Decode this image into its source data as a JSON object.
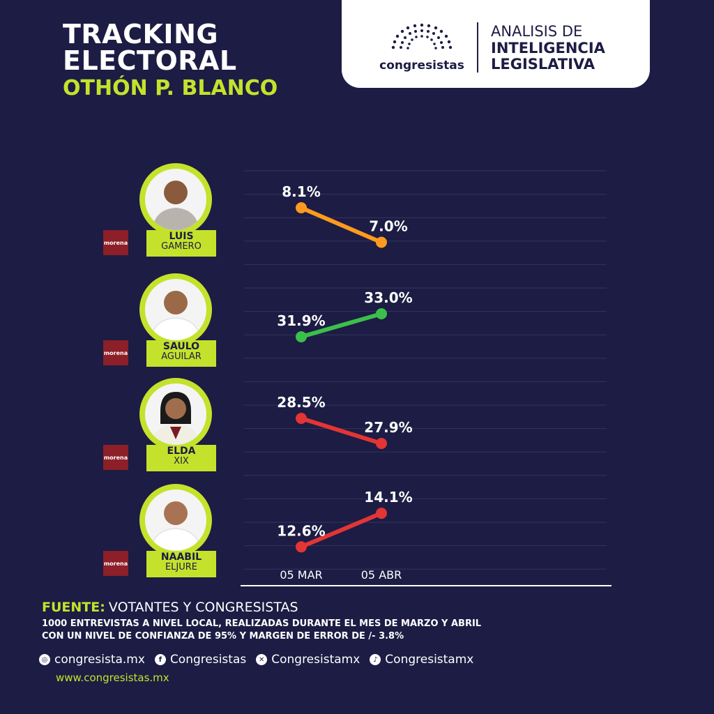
{
  "header": {
    "title_line1": "TRACKING",
    "title_line2": "ELECTORAL",
    "subtitle": "OTHÓN P. BLANCO"
  },
  "brand": {
    "name": "congresistas",
    "line1": "ANALISIS DE",
    "line2": "INTELIGENCIA",
    "line3": "LEGISLATIVA"
  },
  "candidates": [
    {
      "first": "LUIS",
      "last": "GAMERO",
      "party": "morena"
    },
    {
      "first": "SAULO",
      "last": "AGUILAR",
      "party": "morena"
    },
    {
      "first": "ELDA",
      "last": "XIX",
      "party": "morena"
    },
    {
      "first": "NAABIL",
      "last": "ELJURE",
      "party": "morena"
    }
  ],
  "chart_data": {
    "type": "line",
    "x": [
      "05 MAR",
      "05 ABR"
    ],
    "series": [
      {
        "name": "LUIS GAMERO",
        "values": [
          8.1,
          7.0
        ],
        "labels": [
          "8.1%",
          "7.0%"
        ],
        "color": "#ff9a1f"
      },
      {
        "name": "SAULO AGUILAR",
        "values": [
          31.9,
          33.0
        ],
        "labels": [
          "31.9%",
          "33.0%"
        ],
        "color": "#3cbf4a"
      },
      {
        "name": "ELDA XIX",
        "values": [
          28.5,
          27.9
        ],
        "labels": [
          "28.5%",
          "27.9%"
        ],
        "color": "#e33535"
      },
      {
        "name": "NAABIL ELJURE",
        "values": [
          12.6,
          14.1
        ],
        "labels": [
          "12.6%",
          "14.1%"
        ],
        "color": "#e33535"
      }
    ],
    "grid": true
  },
  "footer": {
    "source_label": "FUENTE:",
    "source_value": "VOTANTES Y CONGRESISTAS",
    "note_line1": "1000 ENTREVISTAS A NIVEL LOCAL, REALIZADAS DURANTE EL MES DE MARZO Y ABRIL",
    "note_line2": "CON UN NIVEL DE CONFIANZA DE 95% Y MARGEN DE ERROR DE /- 3.8%",
    "social": [
      {
        "icon": "instagram-icon",
        "text": "congresista.mx"
      },
      {
        "icon": "facebook-icon",
        "text": "Congresistas"
      },
      {
        "icon": "x-icon",
        "text": "Congresistamx"
      },
      {
        "icon": "tiktok-icon",
        "text": "Congresistamx"
      }
    ],
    "website": "www.congresistas.mx"
  }
}
